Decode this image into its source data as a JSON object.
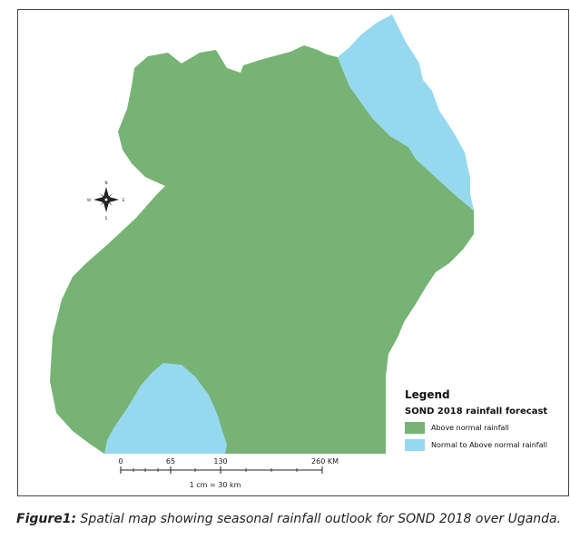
{
  "map": {
    "colors": {
      "above_normal": "#76b374",
      "normal_to_above": "#96d9ef",
      "border": "#444444"
    },
    "regions": [
      {
        "name": "green-region",
        "category": "above_normal"
      },
      {
        "name": "north-east-region",
        "category": "normal_to_above"
      },
      {
        "name": "south-west-region",
        "category": "normal_to_above"
      }
    ],
    "north_arrow_icon": "compass-rose-icon"
  },
  "legend": {
    "title": "Legend",
    "subtitle": "SOND 2018 rainfall forecast",
    "items": [
      {
        "label": "Above normal rainfall",
        "color": "#76b374"
      },
      {
        "label": "Normal to Above normal rainfall",
        "color": "#96d9ef"
      }
    ]
  },
  "scale_bar": {
    "ticks": [
      "0",
      "65",
      "130",
      "260 KM"
    ],
    "ratio": "1 cm = 30 km"
  },
  "caption": {
    "label": "Figure1:",
    "text": "Spatial map showing seasonal rainfall outlook for SOND 2018 over Uganda."
  }
}
